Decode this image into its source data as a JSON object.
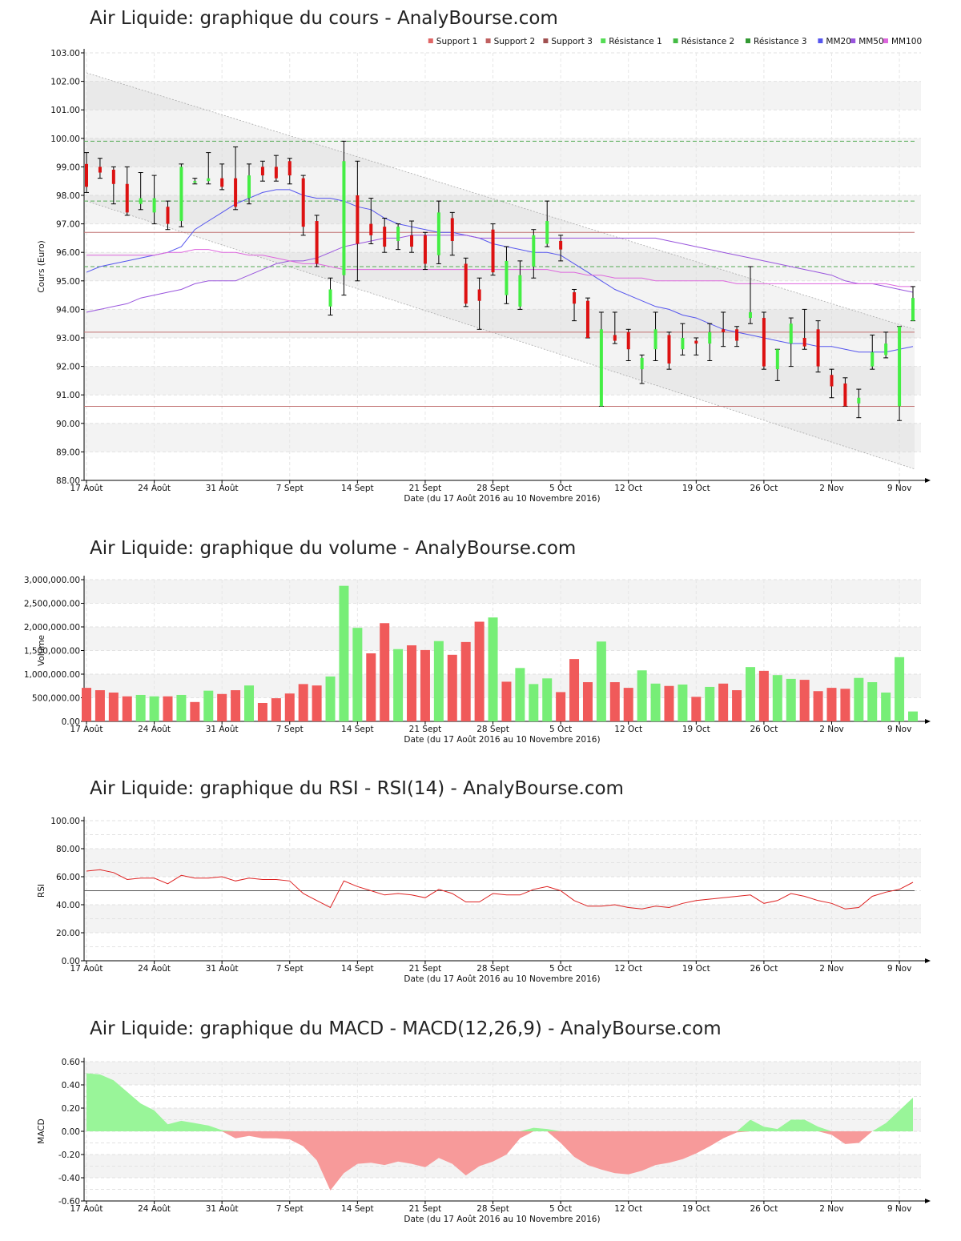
{
  "x_axis": {
    "label": "Date (du 17 Août 2016 au 10 Novembre 2016)",
    "ticks": [
      "17 Août",
      "24 Août",
      "31 Août",
      "7 Sept",
      "14 Sept",
      "21 Sept",
      "28 Sept",
      "5 Oct",
      "12 Oct",
      "19 Oct",
      "26 Oct",
      "2 Nov",
      "9 Nov"
    ],
    "dates": [
      "17/08",
      "18/08",
      "19/08",
      "22/08",
      "23/08",
      "24/08",
      "25/08",
      "26/08",
      "29/08",
      "30/08",
      "31/08",
      "01/09",
      "02/09",
      "05/09",
      "06/09",
      "07/09",
      "08/09",
      "09/09",
      "12/09",
      "13/09",
      "14/09",
      "15/09",
      "16/09",
      "19/09",
      "20/09",
      "21/09",
      "22/09",
      "23/09",
      "26/09",
      "27/09",
      "28/09",
      "29/09",
      "30/09",
      "03/10",
      "04/10",
      "05/10",
      "06/10",
      "07/10",
      "10/10",
      "11/10",
      "12/10",
      "13/10",
      "14/10",
      "17/10",
      "18/10",
      "19/10",
      "20/10",
      "21/10",
      "24/10",
      "25/10",
      "26/10",
      "27/10",
      "28/10",
      "31/10",
      "01/11",
      "02/11",
      "03/11",
      "04/11",
      "07/11",
      "08/11",
      "09/11",
      "10/11"
    ]
  },
  "price_panel": {
    "title": "Air Liquide: graphique du cours - AnalyBourse.com",
    "ylabel": "Cours (Euro)",
    "ytick_labels": [
      "88.00",
      "89.00",
      "90.00",
      "91.00",
      "92.00",
      "93.00",
      "94.00",
      "95.00",
      "96.00",
      "97.00",
      "98.00",
      "99.00",
      "100.00",
      "101.00",
      "102.00",
      "103.00"
    ],
    "legend": [
      {
        "label": "Support 1",
        "color": "#e06666"
      },
      {
        "label": "Support 2",
        "color": "#c06060"
      },
      {
        "label": "Support 3",
        "color": "#a05050"
      },
      {
        "label": "Résistance 1",
        "color": "#55dd55"
      },
      {
        "label": "Résistance 2",
        "color": "#44bb44"
      },
      {
        "label": "Résistance 3",
        "color": "#339933"
      },
      {
        "label": "MM20",
        "color": "#5555ee"
      },
      {
        "label": "MM50",
        "color": "#9955dd"
      },
      {
        "label": "MM100",
        "color": "#dd66dd"
      }
    ]
  },
  "volume_panel": {
    "title": "Air Liquide: graphique du volume - AnalyBourse.com",
    "ylabel": "Volume",
    "ytick_labels": [
      "0.00",
      "500,000.00",
      "1,000,000.00",
      "1,500,000.00",
      "2,000,000.00",
      "2,500,000.00",
      "3,000,000.00"
    ]
  },
  "rsi_panel": {
    "title": "Air Liquide: graphique du RSI - RSI(14) - AnalyBourse.com",
    "ylabel": "RSI",
    "ytick_labels": [
      "0.00",
      "20.00",
      "40.00",
      "60.00",
      "80.00",
      "100.00"
    ]
  },
  "macd_panel": {
    "title": "Air Liquide: graphique du MACD - MACD(12,26,9) - AnalyBourse.com",
    "ylabel": "MACD",
    "ytick_labels": [
      "-0.60",
      "-0.40",
      "-0.20",
      "0.00",
      "0.20",
      "0.40",
      "0.60"
    ]
  },
  "colors": {
    "up": "#44ee44",
    "down": "#dd1111",
    "vol_up": "#77ee77",
    "vol_down": "#f05a5a",
    "mm20": "#5555ee",
    "mm50": "#9955dd",
    "mm100": "#dd66dd",
    "support": "#c07070",
    "resistance": "#55aa55",
    "rsi": "#dd2222",
    "macd_pos": "#99f599",
    "macd_neg": "#f79a9a"
  },
  "chart_data": [
    {
      "type": "candlestick",
      "title": "Air Liquide: graphique du cours - AnalyBourse.com",
      "xlabel": "Date (du 17 Août 2016 au 10 Novembre 2016)",
      "ylabel": "Cours (Euro)",
      "ylim": [
        88,
        103
      ],
      "grid": true,
      "legend_position": "top-right",
      "candles": [
        [
          99.1,
          98.3,
          99.5,
          98.1
        ],
        [
          99.0,
          98.8,
          99.3,
          98.6
        ],
        [
          98.9,
          98.4,
          99.0,
          97.7
        ],
        [
          98.4,
          97.4,
          99.0,
          97.3
        ],
        [
          97.7,
          97.9,
          98.8,
          97.5
        ],
        [
          97.4,
          97.9,
          98.7,
          97.0
        ],
        [
          97.6,
          97.0,
          97.8,
          96.8
        ],
        [
          97.1,
          99.0,
          99.1,
          96.9
        ],
        [
          98.5,
          98.5,
          98.6,
          98.4
        ],
        [
          98.5,
          98.6,
          99.5,
          98.4
        ],
        [
          98.6,
          98.3,
          99.1,
          98.2
        ],
        [
          98.6,
          97.6,
          99.7,
          97.5
        ],
        [
          97.9,
          98.7,
          99.1,
          97.7
        ],
        [
          99.0,
          98.7,
          99.2,
          98.5
        ],
        [
          99.0,
          98.6,
          99.4,
          98.5
        ],
        [
          99.2,
          98.7,
          99.3,
          98.4
        ],
        [
          98.6,
          96.9,
          98.7,
          96.6
        ],
        [
          97.1,
          95.6,
          97.3,
          95.5
        ],
        [
          94.1,
          94.7,
          95.1,
          93.8
        ],
        [
          95.2,
          99.2,
          99.9,
          94.5
        ],
        [
          98.0,
          96.3,
          99.2,
          95.0
        ],
        [
          97.0,
          96.6,
          97.9,
          96.3
        ],
        [
          96.9,
          96.2,
          97.2,
          96.0
        ],
        [
          96.4,
          96.9,
          97.0,
          96.1
        ],
        [
          96.6,
          96.2,
          97.1,
          96.0
        ],
        [
          96.6,
          95.6,
          96.7,
          95.4
        ],
        [
          95.9,
          97.4,
          97.8,
          95.6
        ],
        [
          97.2,
          96.4,
          97.4,
          95.9
        ],
        [
          95.6,
          94.2,
          95.8,
          94.1
        ],
        [
          94.7,
          94.3,
          95.1,
          93.3
        ],
        [
          96.8,
          95.3,
          97.0,
          95.2
        ],
        [
          94.5,
          95.7,
          96.2,
          94.2
        ],
        [
          94.1,
          95.2,
          95.7,
          94.0
        ],
        [
          95.5,
          96.6,
          96.8,
          95.1
        ],
        [
          96.3,
          97.1,
          97.8,
          96.2
        ],
        [
          96.4,
          96.1,
          96.6,
          95.7
        ],
        [
          94.6,
          94.2,
          94.7,
          93.6
        ],
        [
          94.3,
          93.0,
          94.4,
          93.0
        ],
        [
          90.6,
          93.3,
          93.9,
          90.6
        ],
        [
          93.1,
          92.9,
          93.9,
          92.8
        ],
        [
          93.2,
          92.6,
          93.3,
          92.2
        ],
        [
          91.9,
          92.3,
          92.4,
          91.4
        ],
        [
          92.6,
          93.3,
          93.9,
          92.2
        ],
        [
          93.1,
          92.1,
          93.2,
          91.9
        ],
        [
          92.6,
          93.0,
          93.5,
          92.4
        ],
        [
          92.9,
          92.8,
          93.0,
          92.4
        ],
        [
          92.8,
          93.2,
          93.5,
          92.2
        ],
        [
          93.3,
          93.2,
          93.9,
          92.7
        ],
        [
          93.3,
          92.9,
          93.4,
          92.7
        ],
        [
          93.7,
          93.9,
          95.5,
          93.5
        ],
        [
          93.7,
          92.0,
          93.9,
          91.9
        ],
        [
          91.9,
          92.6,
          92.6,
          91.5
        ],
        [
          92.8,
          93.5,
          93.7,
          92.0
        ],
        [
          93.0,
          92.7,
          94.0,
          92.6
        ],
        [
          93.3,
          92.0,
          93.6,
          91.8
        ],
        [
          91.7,
          91.3,
          91.9,
          90.9
        ],
        [
          91.4,
          90.6,
          91.6,
          90.6
        ],
        [
          90.7,
          90.9,
          91.2,
          90.2
        ],
        [
          92.0,
          92.5,
          93.1,
          91.9
        ],
        [
          92.4,
          92.8,
          93.2,
          92.3
        ],
        [
          90.6,
          93.4,
          93.4,
          90.1
        ],
        [
          93.6,
          94.4,
          94.8,
          93.6
        ]
      ],
      "candle_format": [
        "open",
        "close",
        "high",
        "low"
      ],
      "series": [
        {
          "name": "MM20",
          "values": [
            95.3,
            95.5,
            95.6,
            95.7,
            95.8,
            95.9,
            96.0,
            96.2,
            96.8,
            97.1,
            97.4,
            97.7,
            97.9,
            98.1,
            98.2,
            98.2,
            98.0,
            97.9,
            97.9,
            97.8,
            97.6,
            97.5,
            97.2,
            97.0,
            96.9,
            96.8,
            96.7,
            96.7,
            96.6,
            96.5,
            96.3,
            96.2,
            96.1,
            96.0,
            96.0,
            95.9,
            95.6,
            95.3,
            95.0,
            94.7,
            94.5,
            94.3,
            94.1,
            94.0,
            93.8,
            93.7,
            93.5,
            93.3,
            93.2,
            93.1,
            93.0,
            92.9,
            92.8,
            92.8,
            92.7,
            92.7,
            92.6,
            92.5,
            92.5,
            92.5,
            92.6,
            92.7
          ]
        },
        {
          "name": "MM50",
          "values": [
            93.9,
            94.0,
            94.1,
            94.2,
            94.4,
            94.5,
            94.6,
            94.7,
            94.9,
            95.0,
            95.0,
            95.0,
            95.2,
            95.4,
            95.6,
            95.7,
            95.7,
            95.8,
            96.0,
            96.2,
            96.3,
            96.4,
            96.5,
            96.5,
            96.6,
            96.6,
            96.6,
            96.6,
            96.6,
            96.5,
            96.5,
            96.5,
            96.5,
            96.5,
            96.5,
            96.5,
            96.5,
            96.5,
            96.5,
            96.5,
            96.5,
            96.5,
            96.5,
            96.4,
            96.3,
            96.2,
            96.1,
            96.0,
            95.9,
            95.8,
            95.7,
            95.6,
            95.5,
            95.4,
            95.3,
            95.2,
            95.0,
            94.9,
            94.9,
            94.8,
            94.7,
            94.6
          ]
        },
        {
          "name": "MM100",
          "values": [
            95.9,
            95.9,
            95.9,
            95.9,
            95.9,
            95.9,
            96.0,
            96.0,
            96.1,
            96.1,
            96.0,
            96.0,
            95.9,
            95.9,
            95.8,
            95.7,
            95.6,
            95.6,
            95.5,
            95.4,
            95.4,
            95.4,
            95.4,
            95.4,
            95.4,
            95.4,
            95.4,
            95.4,
            95.4,
            95.4,
            95.4,
            95.4,
            95.4,
            95.4,
            95.4,
            95.3,
            95.3,
            95.2,
            95.2,
            95.1,
            95.1,
            95.1,
            95.0,
            95.0,
            95.0,
            95.0,
            95.0,
            95.0,
            94.9,
            94.9,
            94.9,
            94.9,
            94.9,
            94.9,
            94.9,
            94.9,
            94.9,
            94.9,
            94.9,
            94.9,
            94.8,
            94.8
          ]
        }
      ],
      "levels": {
        "supports": [
          93.2,
          90.6,
          96.7
        ],
        "resistances": [
          95.5,
          97.8,
          99.9
        ]
      },
      "trend_channel": {
        "upper": [
          102.3,
          93.3
        ],
        "lower": [
          97.8,
          88.4
        ]
      }
    },
    {
      "type": "bar",
      "title": "Air Liquide: graphique du volume - AnalyBourse.com",
      "xlabel": "Date (du 17 Août 2016 au 10 Novembre 2016)",
      "ylabel": "Volume",
      "ylim": [
        0,
        3000000
      ],
      "grid": true,
      "values": [
        710000,
        660000,
        610000,
        530000,
        560000,
        530000,
        530000,
        560000,
        410000,
        650000,
        580000,
        660000,
        760000,
        390000,
        490000,
        590000,
        790000,
        760000,
        950000,
        2870000,
        1980000,
        1440000,
        2080000,
        1530000,
        1610000,
        1510000,
        1700000,
        1410000,
        1680000,
        2110000,
        2200000,
        840000,
        1130000,
        790000,
        910000,
        620000,
        1320000,
        830000,
        1690000,
        830000,
        710000,
        1080000,
        800000,
        750000,
        780000,
        520000,
        730000,
        800000,
        660000,
        1150000,
        1070000,
        980000,
        900000,
        880000,
        640000,
        710000,
        690000,
        920000,
        830000,
        610000,
        1360000,
        210000
      ],
      "direction": [
        "down",
        "down",
        "down",
        "down",
        "up",
        "up",
        "down",
        "up",
        "down",
        "up",
        "down",
        "down",
        "up",
        "down",
        "down",
        "down",
        "down",
        "down",
        "up",
        "up",
        "up",
        "down",
        "down",
        "up",
        "down",
        "down",
        "up",
        "down",
        "down",
        "down",
        "up",
        "down",
        "up",
        "up",
        "up",
        "down",
        "down",
        "down",
        "up",
        "down",
        "down",
        "up",
        "up",
        "down",
        "up",
        "down",
        "up",
        "down",
        "down",
        "up",
        "down",
        "up",
        "up",
        "down",
        "down",
        "down",
        "down",
        "up",
        "up",
        "up",
        "up",
        "up"
      ]
    },
    {
      "type": "line",
      "title": "Air Liquide: graphique du RSI - RSI(14) - AnalyBourse.com",
      "xlabel": "Date (du 17 Août 2016 au 10 Novembre 2016)",
      "ylabel": "RSI",
      "ylim": [
        0,
        100
      ],
      "grid": true,
      "reference_line": 50,
      "values": [
        64,
        65,
        63,
        58,
        59,
        59,
        55,
        61,
        59,
        59,
        60,
        57,
        59,
        58,
        58,
        57,
        48,
        43,
        38,
        57,
        53,
        50,
        47,
        48,
        47,
        45,
        51,
        48,
        42,
        42,
        48,
        47,
        47,
        51,
        53,
        50,
        43,
        39,
        39,
        40,
        38,
        37,
        39,
        38,
        41,
        43,
        44,
        45,
        46,
        47,
        41,
        43,
        48,
        46,
        43,
        41,
        37,
        38,
        46,
        49,
        51,
        56
      ]
    },
    {
      "type": "area",
      "title": "Air Liquide: graphique du MACD - MACD(12,26,9) - AnalyBourse.com",
      "xlabel": "Date (du 17 Août 2016 au 10 Novembre 2016)",
      "ylabel": "MACD",
      "ylim": [
        -0.6,
        0.6
      ],
      "grid": true,
      "values": [
        0.5,
        0.49,
        0.44,
        0.34,
        0.24,
        0.18,
        0.06,
        0.09,
        0.07,
        0.05,
        0.01,
        -0.06,
        -0.04,
        -0.06,
        -0.06,
        -0.07,
        -0.13,
        -0.25,
        -0.51,
        -0.36,
        -0.28,
        -0.27,
        -0.29,
        -0.26,
        -0.28,
        -0.31,
        -0.23,
        -0.28,
        -0.38,
        -0.3,
        -0.26,
        -0.2,
        -0.06,
        0.03,
        0.02,
        -0.1,
        -0.22,
        -0.29,
        -0.33,
        -0.36,
        -0.37,
        -0.34,
        -0.29,
        -0.27,
        -0.24,
        -0.19,
        -0.13,
        -0.06,
        -0.01,
        0.1,
        0.04,
        0.02,
        0.1,
        0.1,
        0.04,
        -0.03,
        -0.11,
        -0.1,
        0.0,
        0.07,
        0.18,
        0.29
      ]
    }
  ]
}
